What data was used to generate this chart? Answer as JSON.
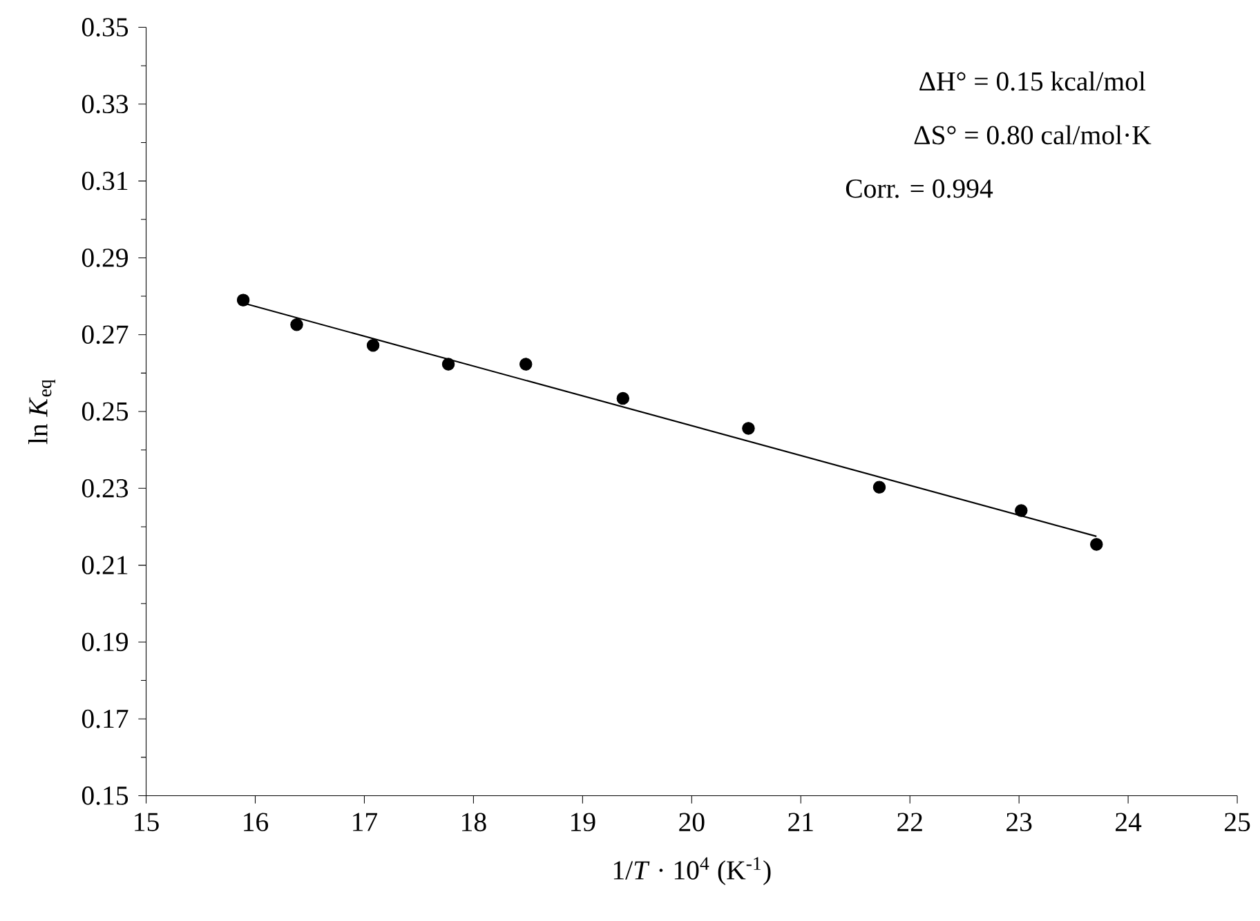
{
  "chart_data": {
    "type": "scatter",
    "xlabel": "1/*T*  · 10$^{4}$ (K$^{-1}$)",
    "ylabel": "ln *K*$_{eq}$",
    "annotations": [
      "ΔH° = 0.15 kcal/mol",
      "ΔS° = 0.80 cal/mol·K",
      "Corr. = 0.994"
    ],
    "xlim": [
      15,
      25
    ],
    "ylim": [
      0.15,
      0.35
    ],
    "xticks": [
      15,
      16,
      17,
      18,
      19,
      20,
      21,
      22,
      23,
      24,
      25
    ],
    "yticks": [
      0.15,
      0.17,
      0.19,
      0.21,
      0.23,
      0.25,
      0.27,
      0.29,
      0.31,
      0.33,
      0.35
    ],
    "grid": false,
    "series": [
      {
        "marker": "circle",
        "color": "#000000",
        "x": [
          15.89,
          16.38,
          17.08,
          17.77,
          18.48,
          19.37,
          20.52,
          21.72,
          23.02,
          23.71
        ],
        "values": [
          0.279,
          0.2726,
          0.2672,
          0.2623,
          0.2623,
          0.2534,
          0.2456,
          0.2303,
          0.2242,
          0.2154
        ]
      },
      {
        "type": "line",
        "marker": "none",
        "color": "#000000",
        "line_style": "solid",
        "x": [
          15.89,
          23.71
        ],
        "values": [
          0.2782,
          0.2175
        ]
      }
    ]
  }
}
